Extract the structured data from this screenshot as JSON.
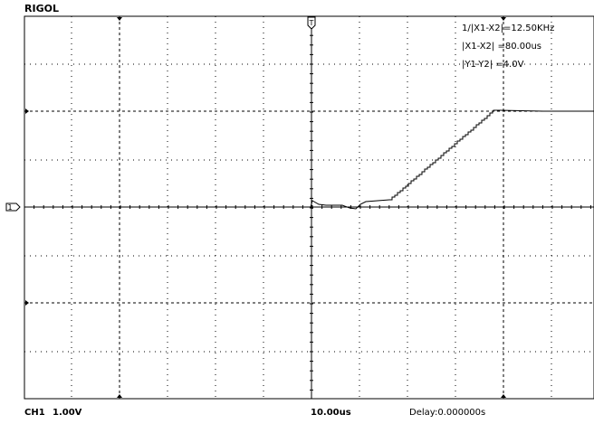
{
  "brand": "RIGOL",
  "readouts": {
    "freq": "1/|X1-X2|=12.50KHz",
    "dx": "|X1-X2|  =80.00us",
    "dy": "|Y1-Y2|  =4.0V"
  },
  "status": {
    "channel": "CH1",
    "volts_div": "1.00V",
    "time_div": "10.00us",
    "delay": "Delay:0.000000s"
  },
  "channel_marker": "1",
  "colors": {
    "trace": "#000000",
    "grid": "#000000",
    "background": "#ffffff"
  }
}
